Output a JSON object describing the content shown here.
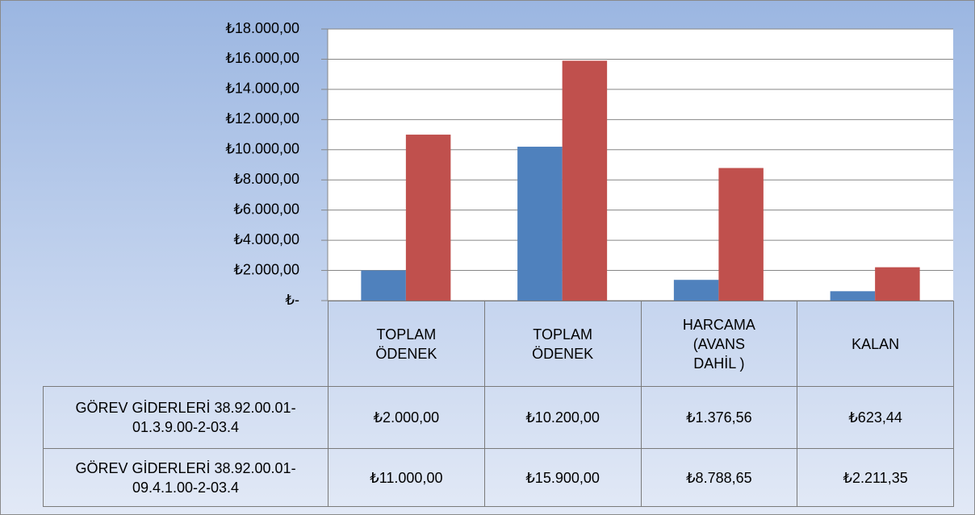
{
  "chart_data": {
    "type": "bar",
    "categories": [
      "TOPLAM ÖDENEK",
      "TOPLAM ÖDENEK",
      "HARCAMA (AVANS DAHİL )",
      "KALAN"
    ],
    "series": [
      {
        "name": "GÖREV GİDERLERİ 38.92.00.01-01.3.9.00-2-03.4",
        "color": "#4f81bd",
        "values": [
          2000,
          10200,
          1376.56,
          623.44
        ],
        "value_labels": [
          "₺2.000,00",
          "₺10.200,00",
          "₺1.376,56",
          "₺623,44"
        ]
      },
      {
        "name": "GÖREV GİDERLERİ 38.92.00.01-09.4.1.00-2-03.4",
        "color": "#c0504d",
        "values": [
          11000,
          15900,
          8788.65,
          2211.35
        ],
        "value_labels": [
          "₺11.000,00",
          "₺15.900,00",
          "₺8.788,65",
          "₺2.211,35"
        ]
      }
    ],
    "ylim": [
      0,
      18000
    ],
    "yticks": [
      {
        "value": 0,
        "label": "₺-"
      },
      {
        "value": 2000,
        "label": "₺2.000,00"
      },
      {
        "value": 4000,
        "label": "₺4.000,00"
      },
      {
        "value": 6000,
        "label": "₺6.000,00"
      },
      {
        "value": 8000,
        "label": "₺8.000,00"
      },
      {
        "value": 10000,
        "label": "₺10.000,00"
      },
      {
        "value": 12000,
        "label": "₺12.000,00"
      },
      {
        "value": 14000,
        "label": "₺14.000,00"
      },
      {
        "value": 16000,
        "label": "₺16.000,00"
      },
      {
        "value": 18000,
        "label": "₺18.000,00"
      }
    ],
    "grid": true
  }
}
